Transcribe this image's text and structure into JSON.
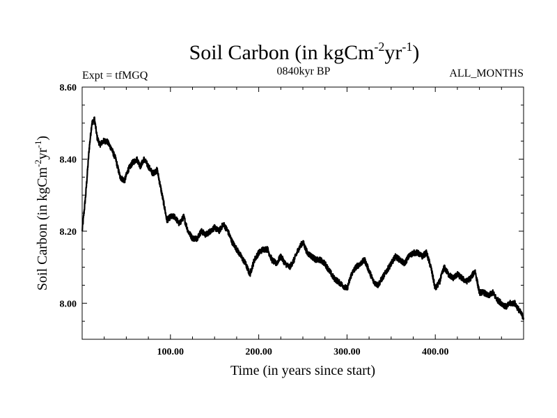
{
  "chart_data": {
    "type": "line",
    "title": {
      "main": "Soil Carbon (in kgCm",
      "sup1": "-2",
      "mid": "yr",
      "sup2": "-1",
      "end": ")"
    },
    "subtitle_left": "Expt = tfMGQ",
    "subtitle_center": "0840kyr BP",
    "subtitle_right": "ALL_MONTHS",
    "xlabel": "Time (in years since start)",
    "ylabel": {
      "main": "Soil Carbon (in kgCm",
      "sup1": "-2",
      "mid": "yr",
      "sup2": "-1",
      "end": ")"
    },
    "xlim": [
      0,
      500
    ],
    "ylim": [
      7.9,
      8.6
    ],
    "xticks": [
      100,
      200,
      300,
      400
    ],
    "xtick_labels": [
      "100.00",
      "200.00",
      "300.00",
      "400.00"
    ],
    "yticks": [
      8.0,
      8.2,
      8.4,
      8.6
    ],
    "ytick_labels": [
      "8.00",
      "8.20",
      "8.40",
      "8.60"
    ],
    "series": [
      {
        "name": "Soil Carbon",
        "color": "#000000",
        "noise_amplitude": 0.008,
        "x": [
          0,
          4,
          8,
          11,
          14,
          17,
          20,
          24,
          28,
          33,
          38,
          43,
          48,
          52,
          57,
          62,
          66,
          70,
          75,
          80,
          85,
          89,
          93,
          96,
          100,
          105,
          110,
          115,
          120,
          125,
          130,
          135,
          140,
          145,
          150,
          155,
          160,
          165,
          170,
          175,
          180,
          185,
          190,
          195,
          200,
          205,
          210,
          215,
          220,
          225,
          230,
          235,
          240,
          245,
          250,
          255,
          260,
          265,
          270,
          275,
          280,
          285,
          290,
          295,
          300,
          305,
          310,
          315,
          320,
          325,
          330,
          335,
          340,
          345,
          350,
          355,
          360,
          365,
          370,
          375,
          380,
          385,
          390,
          395,
          400,
          405,
          410,
          415,
          420,
          425,
          430,
          435,
          440,
          445,
          450,
          455,
          460,
          465,
          470,
          475,
          480,
          485,
          490,
          495,
          500
        ],
        "y": [
          8.2,
          8.3,
          8.43,
          8.5,
          8.51,
          8.46,
          8.44,
          8.45,
          8.45,
          8.43,
          8.4,
          8.35,
          8.34,
          8.37,
          8.39,
          8.4,
          8.38,
          8.4,
          8.38,
          8.36,
          8.37,
          8.32,
          8.27,
          8.23,
          8.24,
          8.24,
          8.22,
          8.24,
          8.2,
          8.18,
          8.18,
          8.2,
          8.19,
          8.2,
          8.21,
          8.2,
          8.22,
          8.2,
          8.17,
          8.15,
          8.13,
          8.11,
          8.08,
          8.12,
          8.14,
          8.15,
          8.15,
          8.12,
          8.11,
          8.13,
          8.11,
          8.1,
          8.12,
          8.15,
          8.17,
          8.14,
          8.13,
          8.12,
          8.12,
          8.11,
          8.09,
          8.07,
          8.06,
          8.05,
          8.04,
          8.08,
          8.1,
          8.11,
          8.12,
          8.09,
          8.06,
          8.05,
          8.07,
          8.09,
          8.11,
          8.13,
          8.12,
          8.11,
          8.13,
          8.14,
          8.14,
          8.13,
          8.14,
          8.1,
          8.04,
          8.06,
          8.1,
          8.08,
          8.07,
          8.08,
          8.07,
          8.06,
          8.07,
          8.09,
          8.03,
          8.03,
          8.02,
          8.03,
          8.01,
          8.0,
          7.99,
          8.0,
          8.0,
          7.98,
          7.96
        ]
      }
    ]
  }
}
